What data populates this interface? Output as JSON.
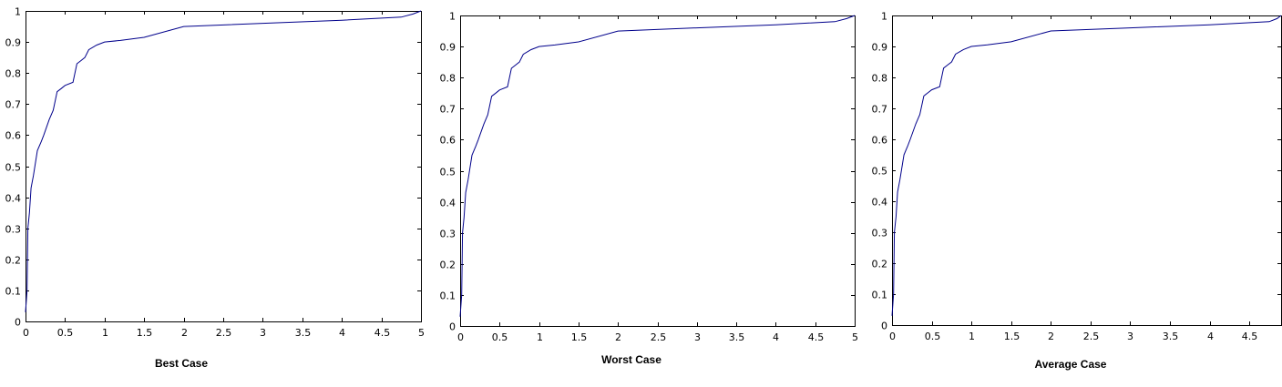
{
  "chart_data": [
    {
      "type": "line",
      "title": "",
      "caption": "Best Case",
      "xlabel": "",
      "ylabel": "",
      "xlim": [
        0,
        5
      ],
      "ylim": [
        0,
        1
      ],
      "xticks": [
        "0",
        "0.5",
        "1",
        "1.5",
        "2",
        "2.5",
        "3",
        "3.5",
        "4",
        "4.5",
        "5"
      ],
      "yticks": [
        "0",
        "0.1",
        "0.2",
        "0.3",
        "0.4",
        "0.5",
        "0.6",
        "0.7",
        "0.8",
        "0.9",
        "1"
      ],
      "grid": false,
      "series": [
        {
          "color": "#00008b",
          "x": [
            0.0,
            0.02,
            0.03,
            0.05,
            0.07,
            0.1,
            0.15,
            0.2,
            0.23,
            0.3,
            0.35,
            0.4,
            0.45,
            0.5,
            0.6,
            0.65,
            0.7,
            0.75,
            0.8,
            0.9,
            1.0,
            1.2,
            1.5,
            2.0,
            3.0,
            4.0,
            4.75,
            4.9,
            5.0
          ],
          "y": [
            0.03,
            0.1,
            0.3,
            0.35,
            0.43,
            0.47,
            0.55,
            0.58,
            0.6,
            0.65,
            0.68,
            0.74,
            0.75,
            0.76,
            0.77,
            0.83,
            0.84,
            0.85,
            0.875,
            0.89,
            0.9,
            0.905,
            0.915,
            0.95,
            0.96,
            0.97,
            0.98,
            0.99,
            1.0
          ]
        }
      ]
    },
    {
      "type": "line",
      "title": "",
      "caption": "Worst Case",
      "xlabel": "",
      "ylabel": "",
      "xlim": [
        0,
        5
      ],
      "ylim": [
        0,
        1
      ],
      "xticks": [
        "0",
        "0.5",
        "1",
        "1.5",
        "2",
        "2.5",
        "3",
        "3.5",
        "4",
        "4.5",
        "5"
      ],
      "yticks": [
        "0",
        "0.1",
        "0.2",
        "0.3",
        "0.4",
        "0.5",
        "0.6",
        "0.7",
        "0.8",
        "0.9",
        "1"
      ],
      "grid": false,
      "series": [
        {
          "color": "#00008b",
          "x": [
            0.0,
            0.02,
            0.03,
            0.05,
            0.07,
            0.1,
            0.15,
            0.2,
            0.23,
            0.3,
            0.35,
            0.4,
            0.45,
            0.5,
            0.6,
            0.65,
            0.7,
            0.75,
            0.8,
            0.9,
            1.0,
            1.2,
            1.5,
            2.0,
            3.0,
            4.0,
            4.75,
            4.9,
            5.0
          ],
          "y": [
            0.03,
            0.1,
            0.3,
            0.35,
            0.43,
            0.47,
            0.55,
            0.58,
            0.6,
            0.65,
            0.68,
            0.74,
            0.75,
            0.76,
            0.77,
            0.83,
            0.84,
            0.85,
            0.875,
            0.89,
            0.9,
            0.905,
            0.915,
            0.95,
            0.96,
            0.97,
            0.98,
            0.99,
            1.0
          ]
        }
      ]
    },
    {
      "type": "line",
      "title": "",
      "caption": "Average Case",
      "xlabel": "",
      "ylabel": "",
      "xlim": [
        0,
        4.9
      ],
      "ylim": [
        0,
        1
      ],
      "xticks": [
        "0",
        "0.5",
        "1",
        "1.5",
        "2",
        "2.5",
        "3",
        "3.5",
        "4",
        "4.5"
      ],
      "yticks": [
        "0",
        "0.1",
        "0.2",
        "0.3",
        "0.4",
        "0.5",
        "0.6",
        "0.7",
        "0.8",
        "0.9",
        "1"
      ],
      "grid": false,
      "series": [
        {
          "color": "#00008b",
          "x": [
            0.0,
            0.02,
            0.03,
            0.05,
            0.07,
            0.1,
            0.15,
            0.2,
            0.23,
            0.3,
            0.35,
            0.4,
            0.45,
            0.5,
            0.6,
            0.65,
            0.7,
            0.75,
            0.8,
            0.9,
            1.0,
            1.2,
            1.5,
            2.0,
            3.0,
            4.0,
            4.75,
            4.85,
            4.9
          ],
          "y": [
            0.03,
            0.1,
            0.3,
            0.35,
            0.43,
            0.47,
            0.55,
            0.58,
            0.6,
            0.65,
            0.68,
            0.74,
            0.75,
            0.76,
            0.77,
            0.83,
            0.84,
            0.85,
            0.875,
            0.89,
            0.9,
            0.905,
            0.915,
            0.95,
            0.96,
            0.97,
            0.98,
            0.99,
            1.0
          ]
        }
      ]
    }
  ]
}
